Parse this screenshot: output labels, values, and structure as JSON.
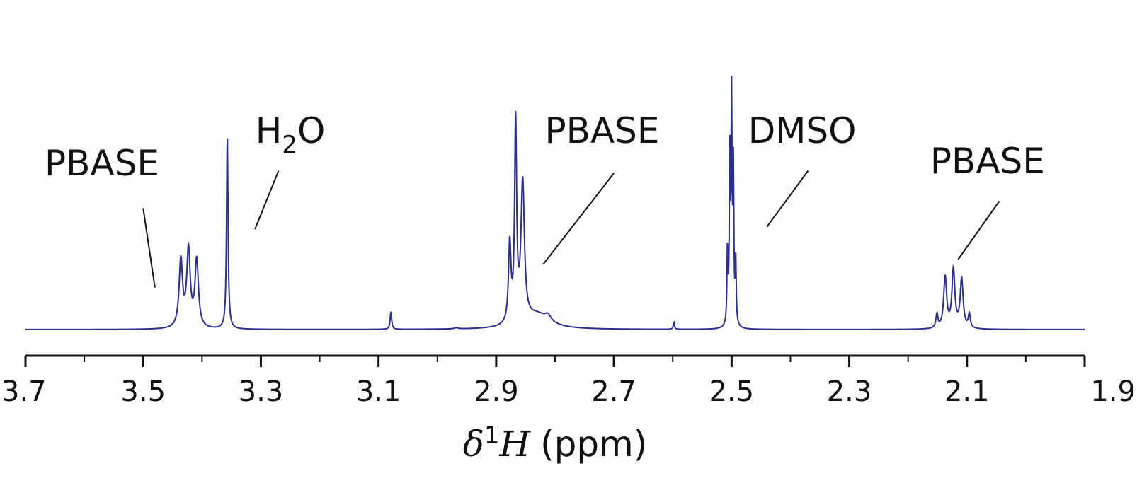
{
  "chart_data": {
    "type": "line",
    "title": "",
    "xlim": [
      3.7,
      1.9
    ],
    "x_reversed": true,
    "xlabel": {
      "delta": "δ",
      "superscript": "1",
      "nucleus": "H",
      "unit": "(ppm)"
    },
    "ylabel": "",
    "grid": false,
    "legend": "none",
    "x_ticks": [
      {
        "value": 3.7,
        "label": "3.7"
      },
      {
        "value": 3.5,
        "label": "3.5"
      },
      {
        "value": 3.3,
        "label": "3.3"
      },
      {
        "value": 3.1,
        "label": "3.1"
      },
      {
        "value": 2.9,
        "label": "2.9"
      },
      {
        "value": 2.7,
        "label": "2.7"
      },
      {
        "value": 2.5,
        "label": "2.5"
      },
      {
        "value": 2.3,
        "label": "2.3"
      },
      {
        "value": 2.1,
        "label": "2.1"
      },
      {
        "value": 1.9,
        "label": "1.9"
      }
    ],
    "minor_ticks": [
      3.6,
      3.4,
      3.2,
      3.0,
      2.8,
      2.6,
      2.4,
      2.2,
      2.0
    ],
    "line_color": "#2b2f8f",
    "baseline": 0,
    "peaks": [
      {
        "center": 3.436,
        "height": 0.29,
        "width": 0.0035
      },
      {
        "center": 3.423,
        "height": 0.33,
        "width": 0.0035
      },
      {
        "center": 3.409,
        "height": 0.29,
        "width": 0.0035
      },
      {
        "center": 3.357,
        "height": 0.83,
        "width": 0.0015
      },
      {
        "center": 3.079,
        "height": 0.075,
        "width": 0.0015
      },
      {
        "center": 2.968,
        "height": 0.005,
        "width": 0.004
      },
      {
        "center": 2.877,
        "height": 0.34,
        "width": 0.0025
      },
      {
        "center": 2.867,
        "height": 0.86,
        "width": 0.002
      },
      {
        "center": 2.855,
        "height": 0.6,
        "width": 0.0035
      },
      {
        "center": 2.83,
        "height": 0.06,
        "width": 0.025
      },
      {
        "center": 2.812,
        "height": 0.025,
        "width": 0.006
      },
      {
        "center": 2.598,
        "height": 0.03,
        "width": 0.0012
      },
      {
        "center": 2.507,
        "height": 0.32,
        "width": 0.001
      },
      {
        "center": 2.503,
        "height": 0.7,
        "width": 0.001
      },
      {
        "center": 2.5,
        "height": 0.94,
        "width": 0.001
      },
      {
        "center": 2.497,
        "height": 0.65,
        "width": 0.001
      },
      {
        "center": 2.493,
        "height": 0.28,
        "width": 0.001
      },
      {
        "center": 2.151,
        "height": 0.06,
        "width": 0.002
      },
      {
        "center": 2.137,
        "height": 0.22,
        "width": 0.003
      },
      {
        "center": 2.123,
        "height": 0.25,
        "width": 0.003
      },
      {
        "center": 2.109,
        "height": 0.21,
        "width": 0.003
      },
      {
        "center": 2.096,
        "height": 0.06,
        "width": 0.002
      }
    ],
    "annotations": [
      {
        "id": "pbase-1",
        "text": "PBASE",
        "label_x": 3.57,
        "label_y": 0.66,
        "line": [
          [
            3.5,
            0.52
          ],
          [
            3.48,
            0.18
          ]
        ]
      },
      {
        "id": "h2o",
        "text": "H",
        "subscript": "2",
        "suffix": "O",
        "label_x": 3.25,
        "label_y": 0.8,
        "line": [
          [
            3.27,
            0.68
          ],
          [
            3.31,
            0.43
          ]
        ]
      },
      {
        "id": "pbase-2",
        "text": "PBASE",
        "label_x": 2.72,
        "label_y": 0.8,
        "line": [
          [
            2.7,
            0.67
          ],
          [
            2.82,
            0.28
          ]
        ]
      },
      {
        "id": "dmso",
        "text": "DMSO",
        "label_x": 2.38,
        "label_y": 0.8,
        "line": [
          [
            2.37,
            0.68
          ],
          [
            2.44,
            0.44
          ]
        ]
      },
      {
        "id": "pbase-3",
        "text": "PBASE",
        "label_x": 2.065,
        "label_y": 0.67,
        "line": [
          [
            2.045,
            0.55
          ],
          [
            2.115,
            0.3
          ]
        ]
      }
    ]
  }
}
